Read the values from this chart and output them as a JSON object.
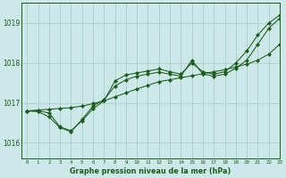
{
  "title": "Graphe pression niveau de la mer (hPa)",
  "background_color": "#cce8e8",
  "line_color": "#1a5c1a",
  "grid_color": "#a8cccc",
  "xlim": [
    -0.5,
    23
  ],
  "ylim": [
    1015.6,
    1019.5
  ],
  "yticks": [
    1016,
    1017,
    1018,
    1019
  ],
  "xticks": [
    0,
    1,
    2,
    3,
    4,
    5,
    6,
    7,
    8,
    9,
    10,
    11,
    12,
    13,
    14,
    15,
    16,
    17,
    18,
    19,
    20,
    21,
    22,
    23
  ],
  "series": [
    [
      1016.8,
      1016.8,
      1016.75,
      1016.4,
      1016.3,
      1016.55,
      1016.85,
      1017.05,
      1017.55,
      1017.7,
      1017.75,
      1017.8,
      1017.85,
      1017.78,
      1017.72,
      1018.0,
      1017.78,
      1017.72,
      1017.78,
      1018.0,
      1018.3,
      1018.7,
      1019.0,
      1019.2
    ],
    [
      1016.8,
      1016.78,
      1016.65,
      1016.38,
      1016.28,
      1016.58,
      1016.92,
      1017.08,
      1017.42,
      1017.58,
      1017.67,
      1017.72,
      1017.77,
      1017.72,
      1017.67,
      1018.07,
      1017.72,
      1017.67,
      1017.72,
      1017.87,
      1018.07,
      1018.47,
      1018.87,
      1019.12
    ],
    [
      1016.8,
      1016.82,
      1016.84,
      1016.86,
      1016.88,
      1016.92,
      1016.98,
      1017.05,
      1017.15,
      1017.25,
      1017.35,
      1017.44,
      1017.53,
      1017.58,
      1017.63,
      1017.68,
      1017.73,
      1017.78,
      1017.83,
      1017.9,
      1017.97,
      1018.07,
      1018.22,
      1018.47
    ]
  ]
}
